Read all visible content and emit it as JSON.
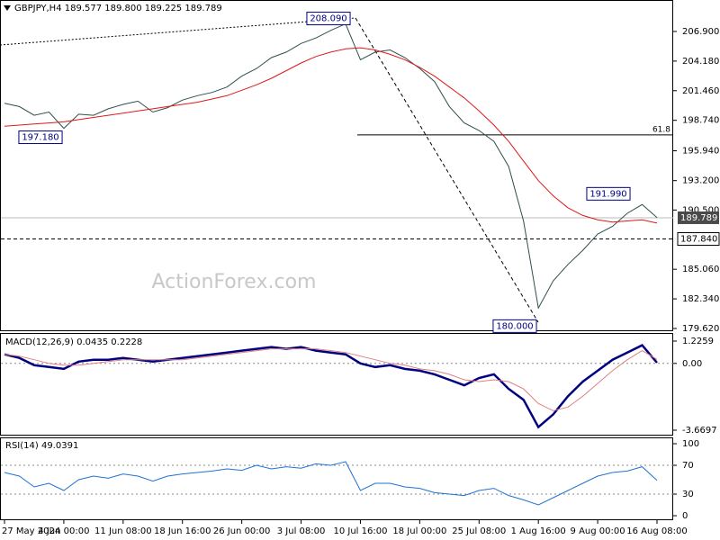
{
  "chart_data": [
    {
      "type": "line",
      "title": "GBPJPY,H4  189.577 189.800 189.225 189.789",
      "watermark": "ActionForex.com",
      "categories": [
        "27 May 2024",
        null,
        null,
        null,
        "4 Jun 00:00",
        null,
        null,
        null,
        "11 Jun 08:00",
        null,
        null,
        null,
        "18 Jun 16:00",
        null,
        null,
        null,
        "26 Jun 00:00",
        null,
        null,
        null,
        "3 Jul 08:00",
        null,
        null,
        null,
        "10 Jul 16:00",
        null,
        null,
        null,
        "18 Jul 00:00",
        null,
        null,
        null,
        "25 Jul 08:00",
        null,
        null,
        null,
        "1 Aug 16:00",
        null,
        null,
        null,
        "9 Aug 00:00",
        null,
        null,
        null,
        "16 Aug 08:00"
      ],
      "series": [
        {
          "color": "#2f4f4f",
          "values": [
            200.3,
            200.0,
            199.2,
            199.5,
            198.0,
            199.3,
            199.2,
            199.8,
            200.2,
            200.5,
            199.5,
            199.9,
            200.6,
            201.0,
            201.3,
            201.8,
            202.8,
            203.5,
            204.5,
            205.0,
            205.8,
            206.3,
            207.0,
            207.6,
            204.3,
            205.0,
            205.2,
            204.5,
            203.5,
            202.3,
            200.0,
            198.5,
            197.8,
            196.8,
            194.5,
            189.5,
            181.5,
            184.0,
            185.5,
            186.8,
            188.3,
            189.0,
            190.2,
            191.0,
            189.8
          ]
        },
        {
          "color": "#e01818",
          "values": [
            198.2,
            198.3,
            198.4,
            198.5,
            198.6,
            198.8,
            199.0,
            199.2,
            199.4,
            199.6,
            199.8,
            200.0,
            200.2,
            200.4,
            200.7,
            201.0,
            201.5,
            202.0,
            202.6,
            203.3,
            204.0,
            204.6,
            205.0,
            205.3,
            205.4,
            205.2,
            204.8,
            204.3,
            203.6,
            202.8,
            201.8,
            200.8,
            199.6,
            198.3,
            196.8,
            195.0,
            193.2,
            191.8,
            190.7,
            190.0,
            189.6,
            189.4,
            189.5,
            189.6,
            189.3
          ]
        }
      ],
      "ylim": [
        179.37,
        209.79
      ],
      "yticks": [
        {
          "value": 206.9,
          "label": "206.900"
        },
        {
          "value": 204.18,
          "label": "204.180"
        },
        {
          "value": 201.46,
          "label": "201.460"
        },
        {
          "value": 198.74,
          "label": "198.740"
        },
        {
          "value": 195.94,
          "label": "195.940"
        },
        {
          "value": 193.2,
          "label": "193.200"
        },
        {
          "value": 190.5,
          "label": "190.500"
        },
        {
          "value": 185.06,
          "label": "185.060"
        },
        {
          "value": 182.34,
          "label": "182.340"
        },
        {
          "value": 179.62,
          "label": "179.620"
        }
      ],
      "annotations": [
        {
          "value": 208.09,
          "label": "208.090"
        },
        {
          "value": 197.18,
          "label": "197.180"
        },
        {
          "value": 180,
          "label": "180.000"
        },
        {
          "value": 191.99,
          "label": "191.990"
        }
      ],
      "fib": {
        "ratio": 61.8,
        "price": 197.4
      },
      "current_price": {
        "value": 189.789,
        "label": "189.789"
      },
      "level": {
        "value": 187.84,
        "label": "187.840"
      }
    },
    {
      "type": "line",
      "title": "MACD(12,26,9) 0.0435 0.2228",
      "series": [
        {
          "color": "#000080",
          "values": [
            0.5,
            0.3,
            -0.1,
            -0.2,
            -0.3,
            0.1,
            0.2,
            0.2,
            0.3,
            0.2,
            0.1,
            0.2,
            0.3,
            0.4,
            0.5,
            0.6,
            0.7,
            0.8,
            0.9,
            0.8,
            0.9,
            0.7,
            0.6,
            0.5,
            0.0,
            -0.2,
            -0.1,
            -0.3,
            -0.4,
            -0.6,
            -0.9,
            -1.2,
            -0.8,
            -0.6,
            -1.4,
            -2.0,
            -3.5,
            -2.8,
            -1.8,
            -1.0,
            -0.4,
            0.2,
            0.6,
            1.0,
            0.04
          ]
        },
        {
          "color": "#e08080",
          "values": [
            0.5,
            0.4,
            0.2,
            0.0,
            -0.1,
            -0.1,
            0.0,
            0.1,
            0.2,
            0.2,
            0.2,
            0.2,
            0.2,
            0.3,
            0.4,
            0.5,
            0.6,
            0.7,
            0.8,
            0.8,
            0.8,
            0.8,
            0.7,
            0.6,
            0.4,
            0.2,
            0.0,
            -0.1,
            -0.3,
            -0.4,
            -0.6,
            -0.9,
            -1.0,
            -0.9,
            -1.0,
            -1.4,
            -2.2,
            -2.6,
            -2.4,
            -1.8,
            -1.1,
            -0.4,
            0.2,
            0.7,
            0.22
          ]
        }
      ],
      "ylim": [
        -3.966,
        1.671
      ],
      "yticks": [
        {
          "value": 1.2259,
          "label": "1.2259"
        },
        {
          "value": 0,
          "label": "0.00"
        },
        {
          "value": -3.6697,
          "label": "-3.6697"
        }
      ]
    },
    {
      "type": "line",
      "title": "RSI(14) 49.0391",
      "series": [
        {
          "color": "#1e73d2",
          "values": [
            60,
            55,
            40,
            45,
            35,
            50,
            55,
            52,
            58,
            55,
            48,
            55,
            58,
            60,
            62,
            65,
            63,
            70,
            65,
            68,
            66,
            72,
            70,
            75,
            35,
            45,
            45,
            40,
            38,
            32,
            30,
            28,
            35,
            38,
            28,
            22,
            15,
            25,
            35,
            45,
            55,
            60,
            62,
            68,
            49
          ]
        }
      ],
      "ylim": [
        -6.25,
        107.5
      ],
      "yticks": [
        100,
        70,
        30,
        0
      ]
    }
  ]
}
